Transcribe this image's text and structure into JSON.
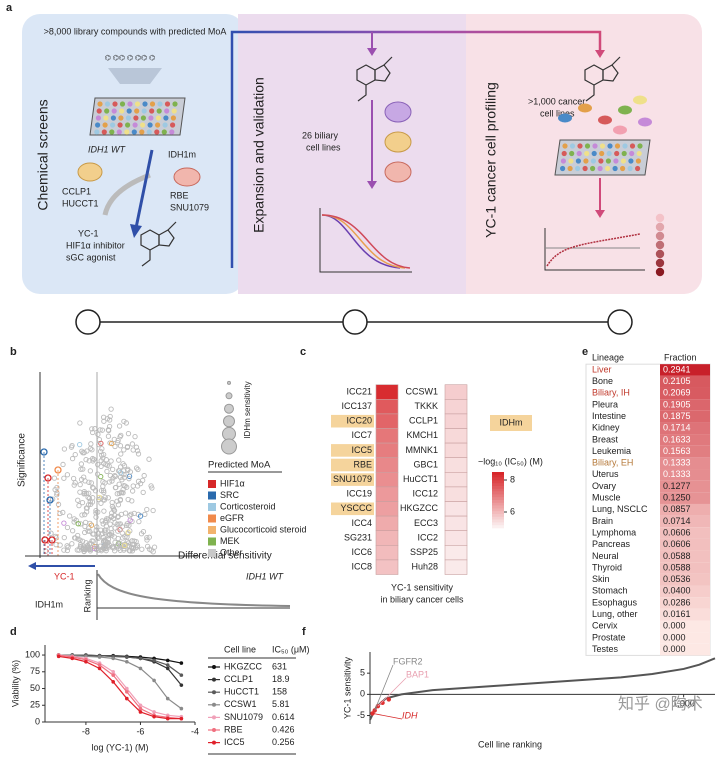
{
  "panel_a": {
    "label": "a",
    "library": ">8,000 library compounds with predicted MoA",
    "stage1": "Chemical screens",
    "wt": "IDH1 WT",
    "wt_lines": [
      "CCLP1",
      "HUCCT1"
    ],
    "mut": "IDH1m",
    "mut_lines": [
      "RBE",
      "SNU1079"
    ],
    "compound": [
      "YC-1",
      "HIF1α inhibitor",
      "sGC agonist"
    ],
    "stage2": "Expansion and validation",
    "biliary": [
      "26 biliary",
      "cell lines"
    ],
    "stage3": "YC-1 cancer cell profiling",
    "cancer": [
      ">1,000 cancer",
      "cell lines"
    ]
  },
  "panel_b": {
    "label": "b",
    "y_label": "Significance",
    "x_label": "Differential sensitivity",
    "size_legend": "IDHm sensitivity",
    "legend_title": "Predicted MoA",
    "legend": [
      {
        "name": "HIF1α",
        "color": "#d62728"
      },
      {
        "name": "SRC",
        "color": "#2a6aad"
      },
      {
        "name": "Corticosteroid",
        "color": "#9ec9e2"
      },
      {
        "name": "eGFR",
        "color": "#f08a4b"
      },
      {
        "name": "Glucocorticoid steroid",
        "color": "#f2b36d"
      },
      {
        "name": "MEK",
        "color": "#7fb24f"
      },
      {
        "name": "Other",
        "color": "#c8c8c8"
      }
    ],
    "highlight": "YC-1",
    "wt": "IDH1 WT",
    "mut": "IDH1m",
    "ranking": "Ranking"
  },
  "chart_data": [
    {
      "type": "heatmap",
      "label": "c",
      "columns": [
        {
          "categories": [
            "ICC21",
            "ICC137",
            "ICC20",
            "ICC7",
            "ICC5",
            "RBE",
            "SNU1079",
            "ICC19",
            "YSCCC",
            "ICC4",
            "SG231",
            "ICC6",
            "ICC8"
          ],
          "values": [
            8.4,
            7.6,
            7.4,
            7.1,
            7.0,
            6.8,
            6.7,
            6.5,
            6.4,
            6.2,
            6.0,
            5.9,
            5.8
          ]
        },
        {
          "categories": [
            "CCSW1",
            "TKKK",
            "CCLP1",
            "KMCH1",
            "MMNK1",
            "GBC1",
            "HuCCT1",
            "ICC12",
            "HKGZCC",
            "ECC3",
            "ICC2",
            "SSP25",
            "Huh28"
          ],
          "values": [
            5.6,
            5.5,
            5.5,
            5.4,
            5.4,
            5.3,
            5.3,
            5.3,
            5.2,
            5.2,
            5.2,
            5.1,
            5.1
          ]
        }
      ],
      "highlighted": [
        "ICC20",
        "ICC5",
        "RBE",
        "SNU1079",
        "YSCCC"
      ],
      "highlight_color": "#f5d49c",
      "highlight_label": "IDHm",
      "colorbar_label": "−log₁₀ (IC₅₀) (M)",
      "clim": [
        5,
        8.5
      ],
      "cticks": [
        6,
        8
      ],
      "colors": [
        "#fbf0f0",
        "#d7262a"
      ],
      "caption": [
        "YC-1 sensitivity",
        "in biliary cancer cells"
      ]
    },
    {
      "type": "line",
      "label": "d",
      "y_label": "Viability (%)",
      "x_label": "log (YC-1) (M)",
      "x": [
        -9,
        -8.5,
        -8,
        -7.5,
        -7,
        -6.5,
        -6,
        -5.5,
        -5,
        -4.5
      ],
      "xlim": [
        -9.5,
        -4
      ],
      "xticks": [
        -8,
        -6,
        -4
      ],
      "ylim": [
        0,
        115
      ],
      "yticks": [
        0,
        25,
        50,
        75,
        100
      ],
      "table_header": [
        "Cell line",
        "IC₅₀ (μM)"
      ],
      "series": [
        {
          "name": "HKGZCC",
          "color": "#111111",
          "ic50": "631",
          "values": [
            100,
            100,
            100,
            99,
            99,
            98,
            97,
            95,
            92,
            88
          ]
        },
        {
          "name": "CCLP1",
          "color": "#333333",
          "ic50": "18.9",
          "values": [
            100,
            100,
            99,
            99,
            98,
            97,
            95,
            90,
            80,
            55
          ]
        },
        {
          "name": "HuCCT1",
          "color": "#5a5a5a",
          "ic50": "158",
          "values": [
            100,
            100,
            100,
            99,
            98,
            97,
            95,
            92,
            85,
            70
          ]
        },
        {
          "name": "CCSW1",
          "color": "#8a8a8a",
          "ic50": "5.81",
          "values": [
            100,
            99,
            98,
            97,
            95,
            90,
            80,
            62,
            35,
            20
          ]
        },
        {
          "name": "SNU1079",
          "color": "#f0a0b8",
          "ic50": "0.614",
          "values": [
            100,
            98,
            95,
            88,
            75,
            50,
            25,
            15,
            10,
            8
          ]
        },
        {
          "name": "RBE",
          "color": "#f07080",
          "ic50": "0.426",
          "values": [
            100,
            97,
            93,
            85,
            70,
            45,
            20,
            10,
            7,
            5
          ]
        },
        {
          "name": "ICC5",
          "color": "#e0202a",
          "ic50": "0.256",
          "values": [
            98,
            95,
            90,
            80,
            60,
            35,
            15,
            8,
            5,
            5
          ]
        }
      ]
    },
    {
      "type": "line",
      "label": "f",
      "y_label": "YC-1 sensitivity",
      "x_label": "Cell line ranking",
      "x": [
        0,
        20,
        50,
        100,
        200,
        300,
        400,
        500,
        600,
        700,
        800,
        900,
        1000,
        1050,
        1100
      ],
      "series": [
        {
          "color": "#555555",
          "values": [
            -6,
            -3,
            -1,
            0,
            1,
            1.5,
            2,
            2.5,
            3,
            3.5,
            4,
            4.8,
            6,
            7,
            8.5
          ]
        }
      ],
      "xlim": [
        0,
        1100
      ],
      "xticks": [
        {
          "value": 1000,
          "label": "1,000"
        }
      ],
      "ylim": [
        -7,
        10
      ],
      "yticks": [
        -5,
        0,
        5
      ],
      "highlight": {
        "color": "#e03030",
        "x": [
          8,
          15,
          25,
          40,
          60
        ],
        "values": [
          -4.5,
          -3.8,
          -2.8,
          -2,
          -1.2
        ]
      },
      "annotations": [
        {
          "text": "FGFR2",
          "color": "#888888"
        },
        {
          "text": "BAP1",
          "color": "#e8a0b0"
        },
        {
          "text": "IDH",
          "color": "#d62728"
        }
      ]
    }
  ],
  "panel_e": {
    "label": "e",
    "header": [
      "Lineage",
      "Fraction"
    ],
    "rows": [
      {
        "cells": [
          "Liver",
          "0.2941"
        ],
        "color": "#c0392b"
      },
      {
        "cells": [
          "Bone",
          "0.2105"
        ]
      },
      {
        "cells": [
          "Biliary, IH",
          "0.2069"
        ],
        "color": "#c0392b"
      },
      {
        "cells": [
          "Pleura",
          "0.1905"
        ]
      },
      {
        "cells": [
          "Intestine",
          "0.1875"
        ]
      },
      {
        "cells": [
          "Kidney",
          "0.1714"
        ]
      },
      {
        "cells": [
          "Breast",
          "0.1633"
        ]
      },
      {
        "cells": [
          "Leukemia",
          "0.1563"
        ]
      },
      {
        "cells": [
          "Biliary, EH",
          "0.1333"
        ],
        "color": "#b5793a"
      },
      {
        "cells": [
          "Uterus",
          "0.1333"
        ]
      },
      {
        "cells": [
          "Ovary",
          "0.1277"
        ]
      },
      {
        "cells": [
          "Muscle",
          "0.1250"
        ]
      },
      {
        "cells": [
          "Lung, NSCLC",
          "0.0857"
        ]
      },
      {
        "cells": [
          "Brain",
          "0.0714"
        ]
      },
      {
        "cells": [
          "Lymphoma",
          "0.0606"
        ]
      },
      {
        "cells": [
          "Pancreas",
          "0.0606"
        ]
      },
      {
        "cells": [
          "Neural",
          "0.0588"
        ]
      },
      {
        "cells": [
          "Thyroid",
          "0.0588"
        ]
      },
      {
        "cells": [
          "Skin",
          "0.0536"
        ]
      },
      {
        "cells": [
          "Stomach",
          "0.0400"
        ]
      },
      {
        "cells": [
          "Esophagus",
          "0.0286"
        ]
      },
      {
        "cells": [
          "Lung, other",
          "0.0161"
        ]
      },
      {
        "cells": [
          "Cervix",
          "0.000"
        ]
      },
      {
        "cells": [
          "Prostate",
          "0.000"
        ]
      },
      {
        "cells": [
          "Testes",
          "0.000"
        ]
      }
    ]
  },
  "watermark": "知乎 @陶术"
}
